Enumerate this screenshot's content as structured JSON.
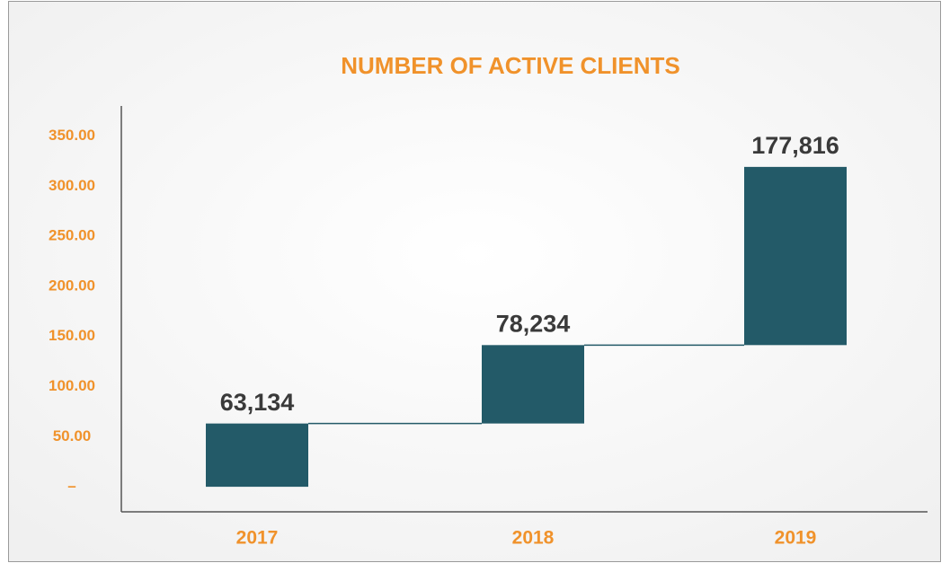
{
  "chart_data": {
    "type": "waterfall",
    "title": "NUMBER OF ACTIVE CLIENTS",
    "categories": [
      "2017",
      "2018",
      "2019"
    ],
    "values": [
      63.134,
      78.234,
      177.816
    ],
    "value_labels": [
      "63,134",
      "78,234",
      "177,816"
    ],
    "color": "#235a68",
    "ylim": [
      -25,
      380
    ],
    "yticks": [
      {
        "value": 0,
        "label": "–"
      },
      {
        "value": 50,
        "label": "50.00"
      },
      {
        "value": 100,
        "label": "100.00"
      },
      {
        "value": 150,
        "label": "150.00"
      },
      {
        "value": 200,
        "label": "200.00"
      },
      {
        "value": 250,
        "label": "250.00"
      },
      {
        "value": 300,
        "label": "300.00"
      },
      {
        "value": 350,
        "label": "350.00"
      }
    ],
    "grid": false
  }
}
